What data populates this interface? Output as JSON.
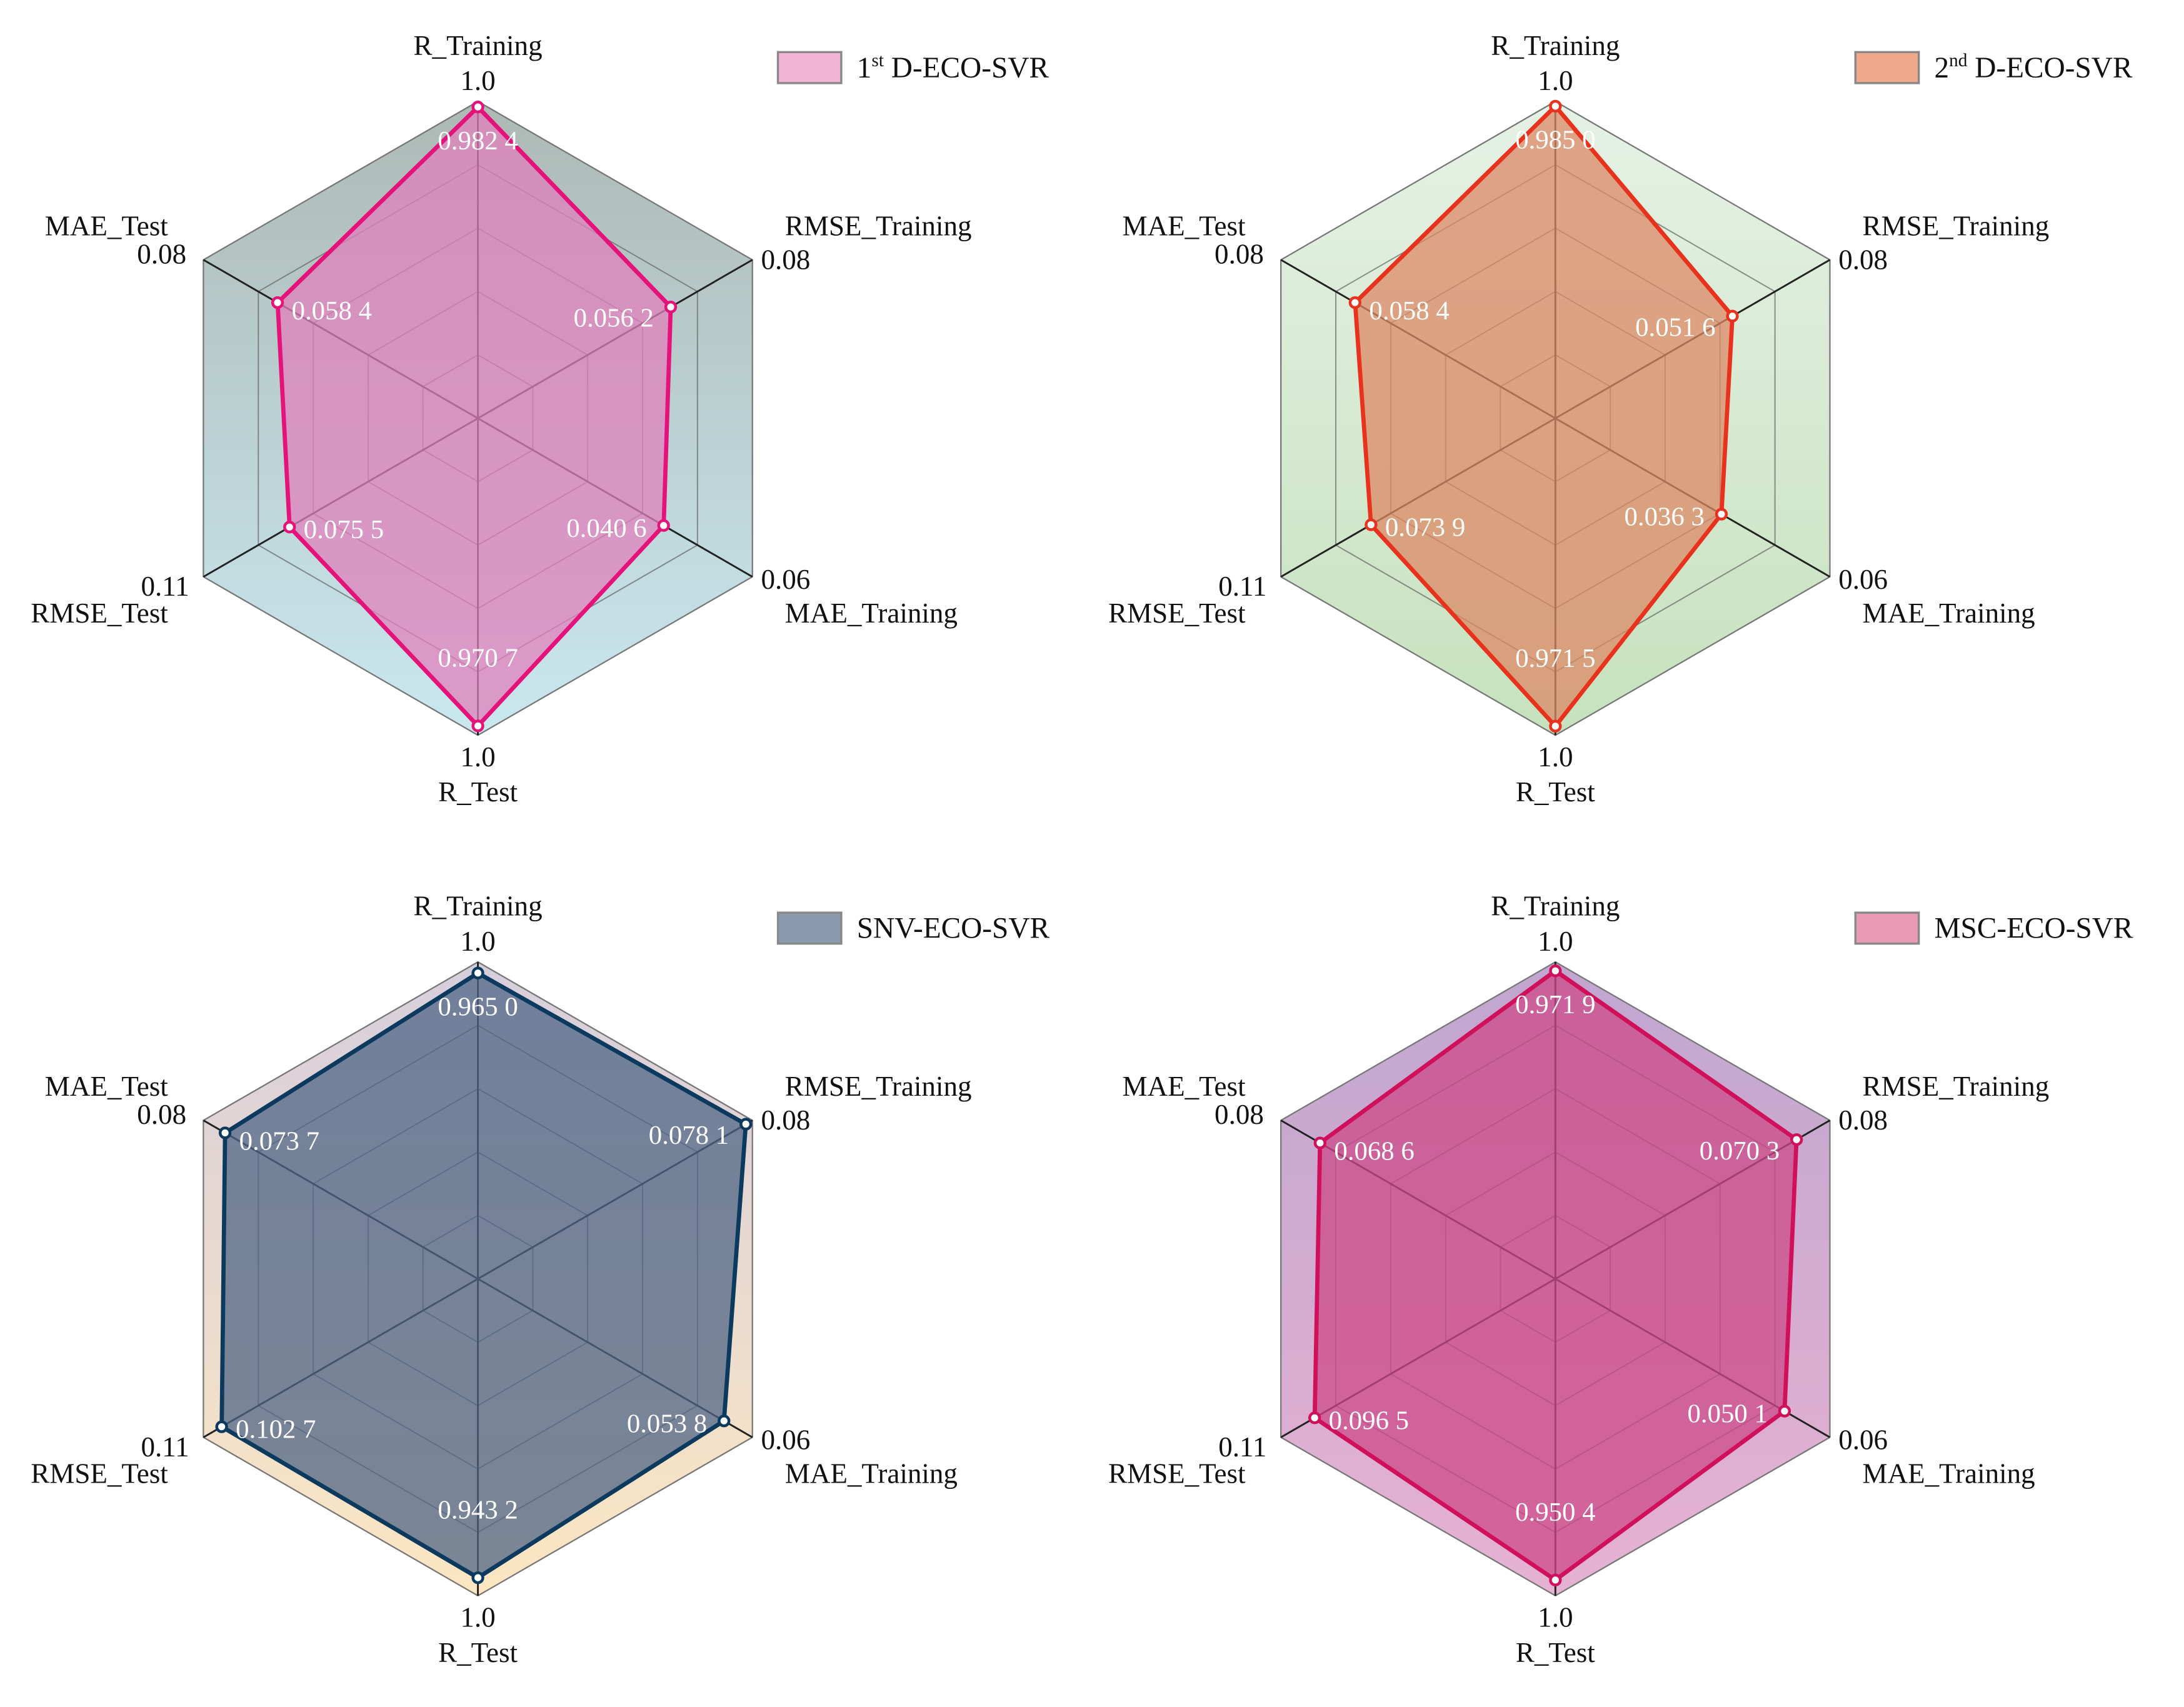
{
  "chart_data": [
    {
      "type": "radar",
      "legend": {
        "base": "1",
        "sup": "st",
        "rest": " D-ECO-SVR",
        "placement": "top-right"
      },
      "axes": [
        "R_Training",
        "RMSE_Training",
        "MAE_Training",
        "R_Test",
        "RMSE_Test",
        "MAE_Test"
      ],
      "axis_max_labels": [
        "1.0",
        "0.08",
        "0.06",
        "1.0",
        "0.11",
        "0.08"
      ],
      "axis_max": [
        1.0,
        0.08,
        0.06,
        1.0,
        0.11,
        0.08
      ],
      "values": [
        0.9824,
        0.0562,
        0.0406,
        0.9707,
        0.0755,
        0.0584
      ],
      "value_labels": [
        "0.982 4",
        "0.056 2",
        "0.040 6",
        "0.970 7",
        "0.075 5",
        "0.058 4"
      ],
      "colors": {
        "line": "#e5127a",
        "fill": "#e080bc",
        "bg_top": "#adb9b5",
        "bg_bottom": "#c9e8ef",
        "legend": "#f2b4d4"
      }
    },
    {
      "type": "radar",
      "legend": {
        "base": "2",
        "sup": "nd",
        "rest": " D-ECO-SVR",
        "placement": "top-right"
      },
      "axes": [
        "R_Training",
        "RMSE_Training",
        "MAE_Training",
        "R_Test",
        "RMSE_Test",
        "MAE_Test"
      ],
      "axis_max_labels": [
        "1.0",
        "0.08",
        "0.06",
        "1.0",
        "0.11",
        "0.08"
      ],
      "axis_max": [
        1.0,
        0.08,
        0.06,
        1.0,
        0.11,
        0.08
      ],
      "values": [
        0.985,
        0.0516,
        0.0363,
        0.9715,
        0.0739,
        0.0584
      ],
      "value_labels": [
        "0.985 0",
        "0.051 6",
        "0.036 3",
        "0.971 5",
        "0.073 9",
        "0.058 4"
      ],
      "colors": {
        "line": "#e8321e",
        "fill": "#dc8a66",
        "bg_top": "#e6f1e6",
        "bg_bottom": "#c6e2bd",
        "legend": "#f0a88a"
      }
    },
    {
      "type": "radar",
      "legend": {
        "base": "SNV-ECO-SVR",
        "sup": "",
        "rest": "",
        "placement": "top-right"
      },
      "axes": [
        "R_Training",
        "RMSE_Training",
        "MAE_Training",
        "R_Test",
        "RMSE_Test",
        "MAE_Test"
      ],
      "axis_max_labels": [
        "1.0",
        "0.08",
        "0.06",
        "1.0",
        "0.11",
        "0.08"
      ],
      "axis_max": [
        1.0,
        0.08,
        0.06,
        1.0,
        0.11,
        0.08
      ],
      "values": [
        0.965,
        0.0781,
        0.0538,
        0.9432,
        0.1027,
        0.0737
      ],
      "value_labels": [
        "0.965 0",
        "0.078 1",
        "0.053 8",
        "0.943 2",
        "0.102 7",
        "0.073 7"
      ],
      "colors": {
        "line": "#0c3a5e",
        "fill": "#4f6585",
        "bg_top": "#d6cedc",
        "bg_bottom": "#fce6c2",
        "legend": "#8a9aae"
      }
    },
    {
      "type": "radar",
      "legend": {
        "base": "MSC-ECO-SVR",
        "sup": "",
        "rest": "",
        "placement": "top-right"
      },
      "axes": [
        "R_Training",
        "RMSE_Training",
        "MAE_Training",
        "R_Test",
        "RMSE_Test",
        "MAE_Test"
      ],
      "axis_max_labels": [
        "1.0",
        "0.08",
        "0.06",
        "1.0",
        "0.11",
        "0.08"
      ],
      "axis_max": [
        1.0,
        0.08,
        0.06,
        1.0,
        0.11,
        0.08
      ],
      "values": [
        0.9719,
        0.0703,
        0.0501,
        0.9504,
        0.0965,
        0.0686
      ],
      "value_labels": [
        "0.971 9",
        "0.070 3",
        "0.050 1",
        "0.950 4",
        "0.096 5",
        "0.068 6"
      ],
      "colors": {
        "line": "#d0105a",
        "fill": "#cc4a88",
        "bg_top": "#c0a6d0",
        "bg_bottom": "#e6b2d2",
        "legend": "#e89ab4"
      }
    }
  ]
}
